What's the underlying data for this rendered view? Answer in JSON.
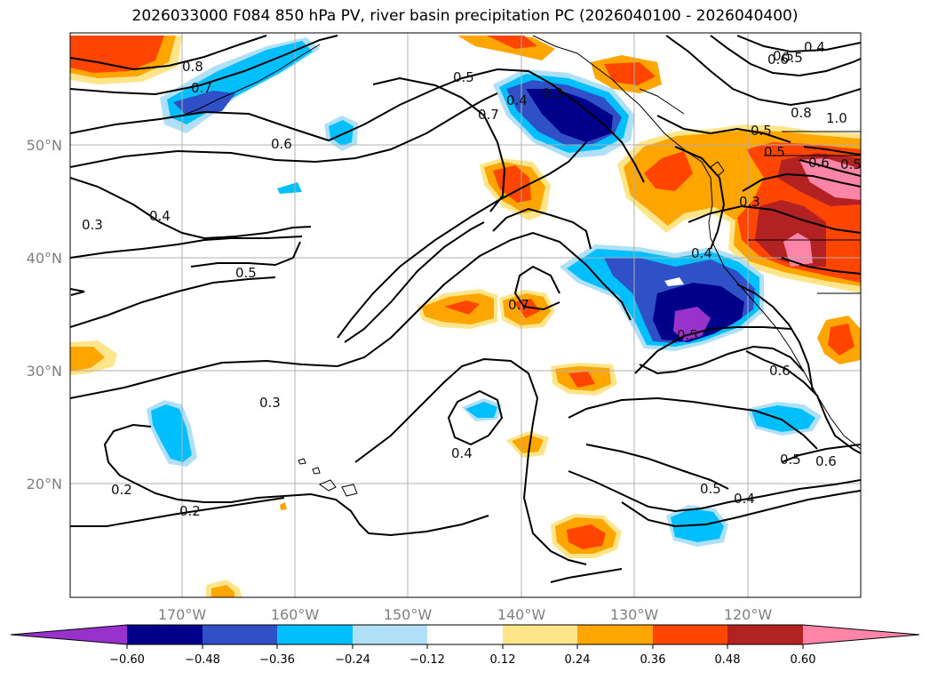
{
  "title": "2026033000 F084 850 hPa PV, river basin precipitation PC (2026040100 - 2026040400)",
  "lon_ticks": [
    "170°W",
    "160°W",
    "150°W",
    "140°W",
    "130°W",
    "120°W"
  ],
  "lat_ticks": [
    "50°N",
    "40°N",
    "30°N",
    "20°N"
  ],
  "contour_labels": [
    "0.8",
    "0.7",
    "0.6",
    "0.5",
    "0.4",
    "0.3",
    "0.5",
    "0.7",
    "0.4",
    "0.3",
    "0.5",
    "0.7",
    "0.5",
    "0.3",
    "0.4",
    "0.2",
    "0.2",
    "0.5",
    "0.4",
    "0.6",
    "0.5",
    "0.6",
    "0.5",
    "0.5",
    "0.6",
    "0.4",
    "0.3",
    "0.8",
    "1.0",
    "0.6",
    "0.5",
    "0.4",
    "0.5"
  ],
  "colorbar": {
    "colors": [
      "#9932cc",
      "#00008b",
      "#3050c8",
      "#00bfff",
      "#b0e0f8",
      "#ffffff",
      "#ffe58a",
      "#ffa500",
      "#ff4500",
      "#b22222",
      "#ff85a8"
    ],
    "labels": [
      "−0.60",
      "−0.48",
      "−0.36",
      "−0.24",
      "−0.12",
      "0.12",
      "0.24",
      "0.36",
      "0.48",
      "0.60"
    ]
  },
  "colors": {
    "grid": "#b0b0b0",
    "contour": "#000000",
    "frame": "#000000"
  }
}
